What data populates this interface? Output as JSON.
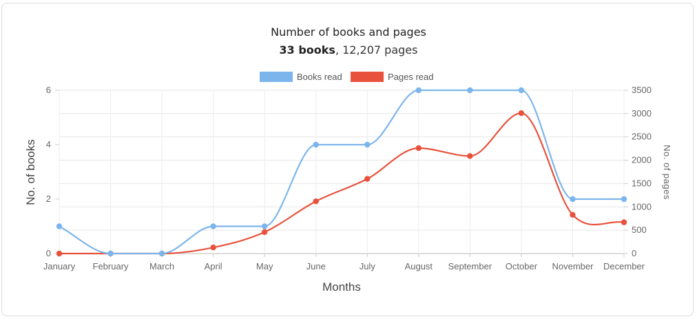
{
  "chart_data": {
    "type": "line",
    "title": "Number of books and pages",
    "subtitle": {
      "books": "33 books",
      "rest": ", 12,207 pages"
    },
    "categories": [
      "January",
      "February",
      "March",
      "April",
      "May",
      "June",
      "July",
      "August",
      "September",
      "October",
      "November",
      "December"
    ],
    "xlabel": "Months",
    "ylabel_left": "No. of books",
    "ylabel_right": "No. of pages",
    "ylim_left": [
      0,
      6
    ],
    "ylim_right": [
      0,
      3500
    ],
    "yticks_left": [
      0,
      2,
      4,
      6
    ],
    "yticks_right": [
      0,
      500,
      1000,
      1500,
      2000,
      2500,
      3000,
      3500
    ],
    "legend_position": "top",
    "grid": true,
    "series": [
      {
        "name": "Books read",
        "axis": "left",
        "color": "#7cb5ec",
        "values": [
          1,
          0,
          0,
          1,
          1,
          4,
          4,
          6,
          6,
          6,
          2,
          2
        ]
      },
      {
        "name": "Pages read",
        "axis": "right",
        "color": "#e8513b",
        "values": [
          0,
          0,
          0,
          130,
          460,
          1120,
          1600,
          2260,
          2090,
          3010,
          830,
          670
        ]
      }
    ]
  }
}
